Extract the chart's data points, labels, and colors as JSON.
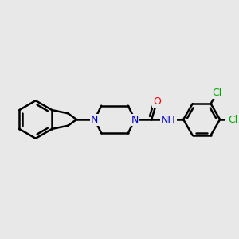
{
  "background_color": "#e8e8e8",
  "bond_color": "#000000",
  "bond_width": 1.8,
  "atom_colors": {
    "N": "#0000cc",
    "O": "#ff0000",
    "Cl": "#00aa00",
    "C": "#000000",
    "H": "#555555"
  },
  "figsize": [
    3.0,
    3.0
  ],
  "dpi": 100,
  "xlim": [
    0.0,
    10.0
  ],
  "ylim": [
    2.5,
    7.5
  ]
}
